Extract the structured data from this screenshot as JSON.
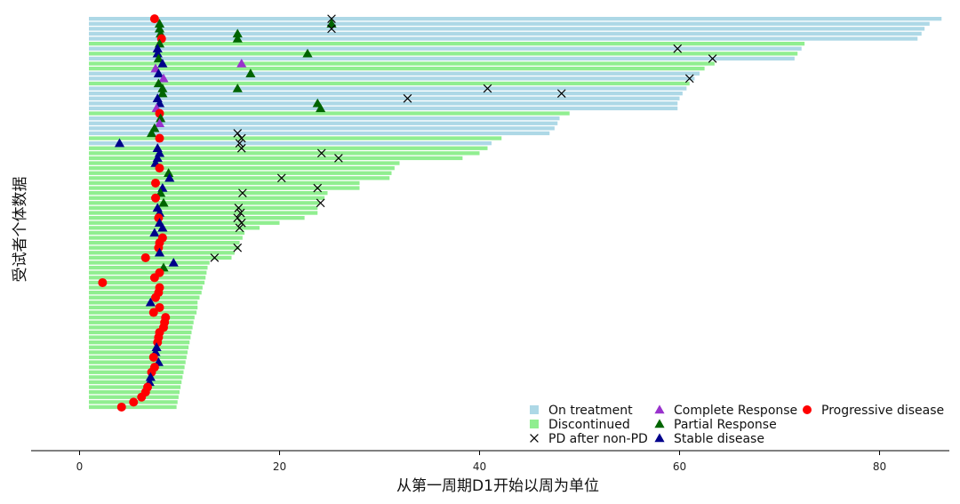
{
  "chart_data": {
    "type": "swimmer",
    "xlabel": "从第一周期D1开始以周为单位",
    "ylabel": "受试者个体数据",
    "xlim": [
      -5,
      87
    ],
    "xticks": [
      0,
      20,
      40,
      60,
      80
    ],
    "colors": {
      "on_treatment": "#add8e6",
      "discontinued": "#90ee90",
      "pd_after_non_pd": "#000000",
      "complete_response": "#9932cc",
      "partial_response": "#006400",
      "stable_disease": "#00008b",
      "progressive_disease": "#ff0000"
    },
    "legend": [
      {
        "key": "on_treatment",
        "label": "On treatment",
        "marker": "square"
      },
      {
        "key": "discontinued",
        "label": "Discontinued",
        "marker": "square"
      },
      {
        "key": "pd_after_non_pd",
        "label": "PD after non-PD",
        "marker": "x"
      },
      {
        "key": "complete_response",
        "label": "Complete Response",
        "marker": "triangle"
      },
      {
        "key": "partial_response",
        "label": "Partial Response",
        "marker": "triangle"
      },
      {
        "key": "stable_disease",
        "label": "Stable disease",
        "marker": "triangle"
      },
      {
        "key": "progressive_disease",
        "label": "Progressive disease",
        "marker": "circle"
      }
    ],
    "subjects": [
      {
        "end": 86.2,
        "status": "on",
        "resp": 7.5,
        "rtype": "PD",
        "pd": 25.2
      },
      {
        "end": 85.0,
        "status": "on",
        "resp": 8.0,
        "rtype": "PR",
        "pr": 25.2
      },
      {
        "end": 84.5,
        "status": "on",
        "resp": 8.0,
        "rtype": "PR",
        "pd": 25.2
      },
      {
        "end": 84.2,
        "status": "on",
        "resp": 8.1,
        "rtype": "PR",
        "pr": 15.8
      },
      {
        "end": 83.8,
        "status": "on",
        "resp": 8.2,
        "rtype": "PD",
        "pr": 15.8
      },
      {
        "end": 72.5,
        "status": "dc",
        "resp": 8.0,
        "rtype": "PR"
      },
      {
        "end": 72.2,
        "status": "on",
        "resp": 7.8,
        "rtype": "SD",
        "pd": 59.8
      },
      {
        "end": 71.8,
        "status": "dc",
        "resp": 7.8,
        "rtype": "SD",
        "pr": 22.8
      },
      {
        "end": 71.5,
        "status": "on",
        "resp": 7.9,
        "rtype": "PR",
        "pd": 63.3
      },
      {
        "end": 63.5,
        "status": "dc",
        "resp": 8.3,
        "rtype": "SD",
        "cr": 16.2
      },
      {
        "end": 62.5,
        "status": "dc",
        "resp": 7.6,
        "rtype": "CR"
      },
      {
        "end": 62.0,
        "status": "on",
        "resp": 7.9,
        "rtype": "SD",
        "pr": 17.1
      },
      {
        "end": 61.5,
        "status": "on",
        "resp": 8.4,
        "rtype": "CR",
        "pd": 61.0
      },
      {
        "end": 61.0,
        "status": "dc",
        "resp": 7.9,
        "rtype": "PR"
      },
      {
        "end": 60.7,
        "status": "on",
        "resp": 8.3,
        "rtype": "PR",
        "pr": 15.8,
        "pd": 40.8
      },
      {
        "end": 60.3,
        "status": "on",
        "resp": 8.3,
        "rtype": "PR",
        "pd": 48.2
      },
      {
        "end": 60.0,
        "status": "on",
        "resp": 7.8,
        "rtype": "SD",
        "pd": 32.8
      },
      {
        "end": 59.8,
        "status": "on",
        "resp": 8.0,
        "rtype": "SD",
        "pr": 23.8
      },
      {
        "end": 59.8,
        "status": "on",
        "resp": 7.7,
        "rtype": "CR",
        "pr": 24.1
      },
      {
        "end": 49.0,
        "status": "dc",
        "resp": 8.0,
        "rtype": "PD"
      },
      {
        "end": 48.0,
        "status": "on",
        "resp": 8.1,
        "rtype": "PR"
      },
      {
        "end": 47.8,
        "status": "on",
        "resp": 8.0,
        "rtype": "CR"
      },
      {
        "end": 47.5,
        "status": "on",
        "resp": 7.5,
        "rtype": "PR"
      },
      {
        "end": 47.0,
        "status": "on",
        "resp": 7.2,
        "rtype": "PR",
        "pd": 15.8
      },
      {
        "end": 42.2,
        "status": "dc",
        "resp": 8.0,
        "rtype": "PD",
        "pd": 16.2
      },
      {
        "end": 41.2,
        "status": "on",
        "resp": 4.0,
        "rtype": "SD",
        "pd": 16.0
      },
      {
        "end": 40.8,
        "status": "dc",
        "resp": 7.8,
        "rtype": "SD",
        "pd": 16.2
      },
      {
        "end": 40.0,
        "status": "dc",
        "resp": 8.0,
        "rtype": "SD",
        "pd": 24.2
      },
      {
        "end": 38.3,
        "status": "dc",
        "resp": 7.8,
        "rtype": "SD",
        "pd": 25.9
      },
      {
        "end": 32.0,
        "status": "dc",
        "resp": 7.6,
        "rtype": "SD"
      },
      {
        "end": 31.5,
        "status": "dc",
        "resp": 8.0,
        "rtype": "PD"
      },
      {
        "end": 31.2,
        "status": "dc",
        "resp": 8.9,
        "rtype": "PR"
      },
      {
        "end": 31.0,
        "status": "dc",
        "resp": 9.0,
        "rtype": "SD",
        "pd": 20.2
      },
      {
        "end": 28.0,
        "status": "dc",
        "resp": 7.6,
        "rtype": "PD"
      },
      {
        "end": 28.0,
        "status": "dc",
        "resp": 8.3,
        "rtype": "SD",
        "pd": 23.8
      },
      {
        "end": 24.8,
        "status": "dc",
        "resp": 8.1,
        "rtype": "PR",
        "pd": 16.3
      },
      {
        "end": 24.5,
        "status": "dc",
        "resp": 7.6,
        "rtype": "PD"
      },
      {
        "end": 24.0,
        "status": "dc",
        "resp": 8.4,
        "rtype": "PR",
        "pd": 24.1
      },
      {
        "end": 23.8,
        "status": "dc",
        "resp": 7.8,
        "rtype": "SD",
        "pd": 15.9
      },
      {
        "end": 23.8,
        "status": "dc",
        "resp": 8.0,
        "rtype": "SD",
        "pd": 16.1
      },
      {
        "end": 22.5,
        "status": "dc",
        "resp": 7.9,
        "rtype": "PD",
        "pd": 15.8
      },
      {
        "end": 20.0,
        "status": "dc",
        "resp": 8.0,
        "rtype": "SD",
        "pd": 16.2
      },
      {
        "end": 18.0,
        "status": "dc",
        "resp": 8.3,
        "rtype": "SD",
        "pd": 16.0
      },
      {
        "end": 16.5,
        "status": "dc",
        "resp": 7.5,
        "rtype": "SD"
      },
      {
        "end": 16.3,
        "status": "dc",
        "resp": 8.3,
        "rtype": "PD"
      },
      {
        "end": 16.0,
        "status": "dc",
        "resp": 8.0,
        "rtype": "PD"
      },
      {
        "end": 16.0,
        "status": "dc",
        "resp": 7.9,
        "rtype": "PD",
        "pd": 15.8
      },
      {
        "end": 15.5,
        "status": "dc",
        "resp": 8.0,
        "rtype": "SD"
      },
      {
        "end": 15.2,
        "status": "dc",
        "resp": 6.6,
        "rtype": "PD",
        "pd": 13.5
      },
      {
        "end": 13.0,
        "status": "dc",
        "resp": 9.4,
        "rtype": "SD"
      },
      {
        "end": 12.8,
        "status": "dc",
        "resp": 8.4,
        "rtype": "PR"
      },
      {
        "end": 12.7,
        "status": "dc",
        "resp": 8.0,
        "rtype": "PD"
      },
      {
        "end": 12.6,
        "status": "dc",
        "resp": 7.5,
        "rtype": "PD"
      },
      {
        "end": 12.5,
        "status": "dc",
        "resp": 2.3,
        "rtype": "PD"
      },
      {
        "end": 12.3,
        "status": "dc",
        "resp": 8.0,
        "rtype": "PD"
      },
      {
        "end": 12.2,
        "status": "dc",
        "resp": 7.9,
        "rtype": "PD"
      },
      {
        "end": 12.0,
        "status": "dc",
        "resp": 7.6,
        "rtype": "PD"
      },
      {
        "end": 11.8,
        "status": "dc",
        "resp": 7.1,
        "rtype": "SD"
      },
      {
        "end": 11.8,
        "status": "dc",
        "resp": 8.0,
        "rtype": "PD"
      },
      {
        "end": 11.7,
        "status": "dc",
        "resp": 7.4,
        "rtype": "PD"
      },
      {
        "end": 11.5,
        "status": "dc",
        "resp": 8.6,
        "rtype": "PD"
      },
      {
        "end": 11.4,
        "status": "dc",
        "resp": 8.5,
        "rtype": "PD"
      },
      {
        "end": 11.3,
        "status": "dc",
        "resp": 8.4,
        "rtype": "PD"
      },
      {
        "end": 11.2,
        "status": "dc",
        "resp": 8.0,
        "rtype": "PD"
      },
      {
        "end": 11.1,
        "status": "dc",
        "resp": 7.9,
        "rtype": "PD"
      },
      {
        "end": 11.0,
        "status": "dc",
        "resp": 7.8,
        "rtype": "PD"
      },
      {
        "end": 10.9,
        "status": "dc",
        "resp": 7.7,
        "rtype": "SD"
      },
      {
        "end": 10.8,
        "status": "dc",
        "resp": 7.6,
        "rtype": "SD"
      },
      {
        "end": 10.7,
        "status": "dc",
        "resp": 7.4,
        "rtype": "PD"
      },
      {
        "end": 10.6,
        "status": "dc",
        "resp": 7.9,
        "rtype": "SD"
      },
      {
        "end": 10.5,
        "status": "dc",
        "resp": 7.5,
        "rtype": "PD"
      },
      {
        "end": 10.4,
        "status": "dc",
        "resp": 7.2,
        "rtype": "PD"
      },
      {
        "end": 10.3,
        "status": "dc",
        "resp": 7.1,
        "rtype": "SD"
      },
      {
        "end": 10.2,
        "status": "dc",
        "resp": 7.0,
        "rtype": "SD"
      },
      {
        "end": 10.1,
        "status": "dc",
        "resp": 6.8,
        "rtype": "PD"
      },
      {
        "end": 10.0,
        "status": "dc",
        "resp": 6.6,
        "rtype": "PD"
      },
      {
        "end": 9.9,
        "status": "dc",
        "resp": 6.2,
        "rtype": "PD"
      },
      {
        "end": 9.8,
        "status": "dc",
        "resp": 5.4,
        "rtype": "PD"
      },
      {
        "end": 9.7,
        "status": "dc",
        "resp": 4.2,
        "rtype": "PD"
      }
    ]
  }
}
